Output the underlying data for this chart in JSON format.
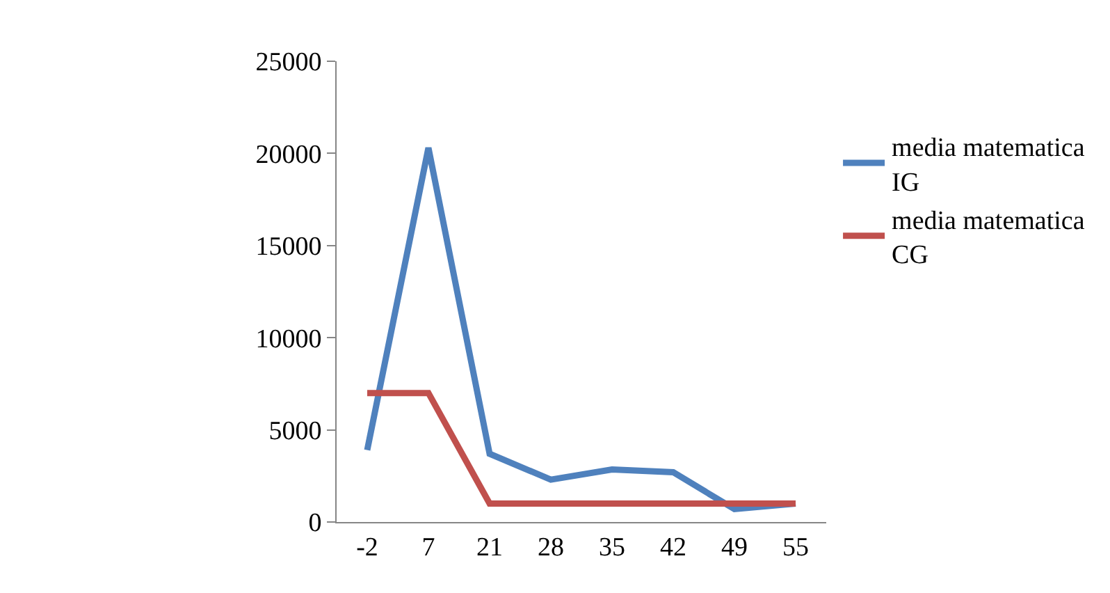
{
  "chart_data": {
    "type": "line",
    "categories": [
      "-2",
      "7",
      "21",
      "28",
      "35",
      "42",
      "49",
      "55"
    ],
    "series": [
      {
        "name": "media matematica IG",
        "color": "#4f81bd",
        "values": [
          3900,
          20300,
          3700,
          2300,
          2850,
          2700,
          700,
          1000
        ]
      },
      {
        "name": "media matematica CG",
        "color": "#c0504d",
        "values": [
          7000,
          7000,
          1000,
          1000,
          1000,
          1000,
          1000,
          1000
        ]
      }
    ],
    "ylim": [
      0,
      25000
    ],
    "yticks": [
      0,
      5000,
      10000,
      15000,
      20000,
      25000
    ],
    "grid": false,
    "legend": "right",
    "marker": "none",
    "line_style": "solid"
  }
}
